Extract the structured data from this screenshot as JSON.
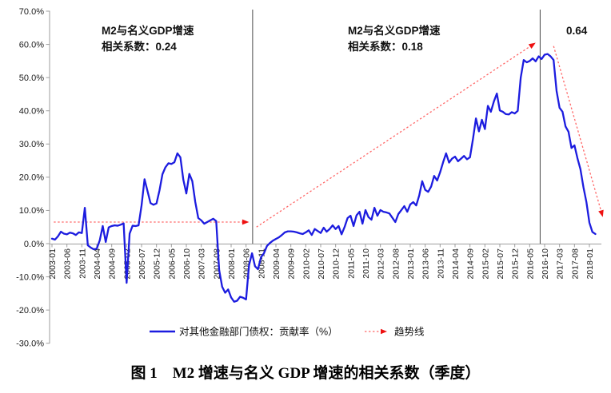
{
  "figure": {
    "caption": "图 1　M2 增速与名义 GDP 增速的相关系数（季度）"
  },
  "colors": {
    "series_line": "#1c1cdf",
    "trend_line": "#ff6666",
    "trend_arrow": "#ee1111",
    "divider": "#4a4a4a",
    "axis": "#9e9e9e",
    "text": "#1a1a1a"
  },
  "chart_data": {
    "type": "line",
    "title": "图 1 M2 增速与名义 GDP 增速的相关系数（季度）",
    "x_unit": "month",
    "x_start": "2003-01",
    "x_end": "2018-03",
    "ylim": [
      -30,
      70
    ],
    "grid": false,
    "legend": {
      "position": "bottom",
      "series_label": "对其他金融部门债权：贡献率（%）",
      "trend_label": "趋势线"
    },
    "annotations": [
      {
        "lines": [
          "M2与名义GDP增速",
          "相关系数：0.24"
        ]
      },
      {
        "lines": [
          "M2与名义GDP增速",
          "相关系数：0.18"
        ]
      },
      {
        "lines": [
          "0.64"
        ]
      }
    ],
    "correlations": [
      {
        "segment": 1,
        "value": 0.24
      },
      {
        "segment": 2,
        "value": 0.18
      },
      {
        "segment": 3,
        "value": 0.64
      }
    ],
    "y_ticks": [
      {
        "label": "70.0%",
        "value": 70
      },
      {
        "label": "60.0%",
        "value": 60
      },
      {
        "label": "50.0%",
        "value": 50
      },
      {
        "label": "40.0%",
        "value": 40
      },
      {
        "label": "30.0%",
        "value": 30
      },
      {
        "label": "20.0%",
        "value": 20
      },
      {
        "label": "10.0%",
        "value": 10
      },
      {
        "label": "0.0%",
        "value": 0
      },
      {
        "label": "-10.0%",
        "value": -10
      },
      {
        "label": "-20.0%",
        "value": -20
      },
      {
        "label": "-30.0%",
        "value": -30
      }
    ],
    "x_tick_labels": [
      "2003-01",
      "2003-06",
      "2003-11",
      "2004-04",
      "2004-09",
      "2005-02",
      "2005-07",
      "2005-12",
      "2006-05",
      "2006-10",
      "2007-03",
      "2007-08",
      "2008-01",
      "2008-06",
      "2008-11",
      "2009-04",
      "2009-09",
      "2010-02",
      "2010-07",
      "2010-12",
      "2011-05",
      "2011-10",
      "2012-03",
      "2012-08",
      "2013-01",
      "2013-06",
      "2013-11",
      "2014-04",
      "2014-09",
      "2015-02",
      "2015-07",
      "2015-12",
      "2016-05",
      "2016-10",
      "2017-03",
      "2017-08",
      "2018-01"
    ],
    "dividers": [
      {
        "month_index": 67.2
      },
      {
        "month_index": 163.5
      }
    ],
    "trend_lines": [
      {
        "from": {
          "month_index": 0.6,
          "value": 6.5
        },
        "to": {
          "month_index": 66,
          "value": 6.5
        }
      },
      {
        "from": {
          "month_index": 68.5,
          "value": 5.0
        },
        "to": {
          "month_index": 162,
          "value": 60.5
        }
      },
      {
        "from": {
          "month_index": 168,
          "value": 59.5
        },
        "to": {
          "month_index": 184.5,
          "value": 8.0
        }
      }
    ],
    "series": [
      {
        "name": "对其他金融部门债权：贡献率（%）",
        "color": "#1c1cdf",
        "values": [
          1.5,
          1.2,
          2.2,
          3.6,
          3.0,
          2.8,
          3.3,
          3.1,
          2.6,
          3.4,
          3.2,
          10.8,
          -0.5,
          -1.2,
          -1.7,
          -1.5,
          1.0,
          5.3,
          0.5,
          4.9,
          5.3,
          5.5,
          5.4,
          5.7,
          6.1,
          -11.8,
          3.0,
          5.4,
          5.3,
          5.5,
          11.5,
          19.4,
          15.8,
          12.2,
          11.7,
          12.1,
          16.0,
          20.9,
          23.0,
          24.2,
          24.0,
          24.5,
          27.2,
          26.0,
          19.2,
          15.1,
          21.0,
          18.8,
          12.5,
          7.7,
          7.0,
          6.0,
          6.5,
          7.0,
          7.5,
          6.8,
          -8.0,
          -13.0,
          -14.8,
          -13.8,
          -16.2,
          -17.5,
          -17.2,
          -16.0,
          -16.3,
          -16.8,
          -6.5,
          -2.9,
          -6.8,
          -7.7,
          -4.1,
          -2.9,
          -0.7,
          0.2,
          0.9,
          1.4,
          1.9,
          2.6,
          3.4,
          3.7,
          3.7,
          3.6,
          3.4,
          3.1,
          2.9,
          3.4,
          4.0,
          2.6,
          4.4,
          3.8,
          3.2,
          4.8,
          3.6,
          4.4,
          5.5,
          4.4,
          5.3,
          2.8,
          5.0,
          7.7,
          8.4,
          5.3,
          8.5,
          9.6,
          6.0,
          10.1,
          8.0,
          7.2,
          10.8,
          8.4,
          10.1,
          9.6,
          9.4,
          9.1,
          7.8,
          6.5,
          8.9,
          10.1,
          11.3,
          9.6,
          11.8,
          12.5,
          11.5,
          14.5,
          18.8,
          16.2,
          15.6,
          17.2,
          20.4,
          19.0,
          21.5,
          24.5,
          27.2,
          24.4,
          25.6,
          26.2,
          24.8,
          25.6,
          26.4,
          25.4,
          26.0,
          31.5,
          37.7,
          33.8,
          37.3,
          34.5,
          41.5,
          39.7,
          42.8,
          45.2,
          40.1,
          39.7,
          39.0,
          38.9,
          39.6,
          39.2,
          40.0,
          50.0,
          55.3,
          54.6,
          55.0,
          55.8,
          54.9,
          56.4,
          55.6,
          56.9,
          57.1,
          56.4,
          55.3,
          46.0,
          40.9,
          39.7,
          35.3,
          33.7,
          28.8,
          29.6,
          25.7,
          22.4,
          17.0,
          12.5,
          6.3,
          3.5,
          2.9
        ]
      }
    ]
  }
}
